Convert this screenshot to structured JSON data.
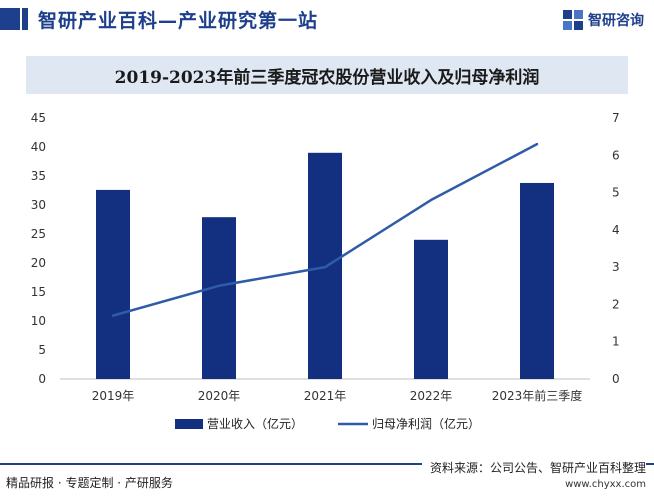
{
  "header": {
    "title": "智研产业百科—产业研究第一站",
    "logo_text": "智研咨询"
  },
  "footer": {
    "source": "资料来源：公司公告、智研产业百科整理",
    "tags": "精品研报 · 专题定制 · 产研服务",
    "site": "www.chyxx.com"
  },
  "colors": {
    "brand": "#1d3f8c",
    "bar": "#12307f",
    "line": "#2f5ba8",
    "title_band": "#dfe7f3"
  },
  "chart_data": {
    "type": "bar+line",
    "title": "2019-2023年前三季度冠农股份营业收入及归母净利润",
    "categories": [
      "2019年",
      "2020年",
      "2021年",
      "2022年",
      "2023年前三季度"
    ],
    "series": [
      {
        "name": "营业收入（亿元）",
        "type": "bar",
        "axis": "left",
        "values": [
          32.6,
          27.9,
          39.0,
          24.0,
          33.8
        ]
      },
      {
        "name": "归母净利润（亿元）",
        "type": "line",
        "axis": "right",
        "values": [
          1.7,
          2.5,
          3.0,
          4.8,
          6.3
        ]
      }
    ],
    "left_axis": {
      "min": 0,
      "max": 45,
      "ticks": [
        0,
        5,
        10,
        15,
        20,
        25,
        30,
        35,
        40,
        45
      ]
    },
    "right_axis": {
      "min": 0,
      "max": 7,
      "ticks": [
        0,
        1,
        2,
        3,
        4,
        5,
        6,
        7
      ]
    },
    "legend_position": "bottom"
  }
}
